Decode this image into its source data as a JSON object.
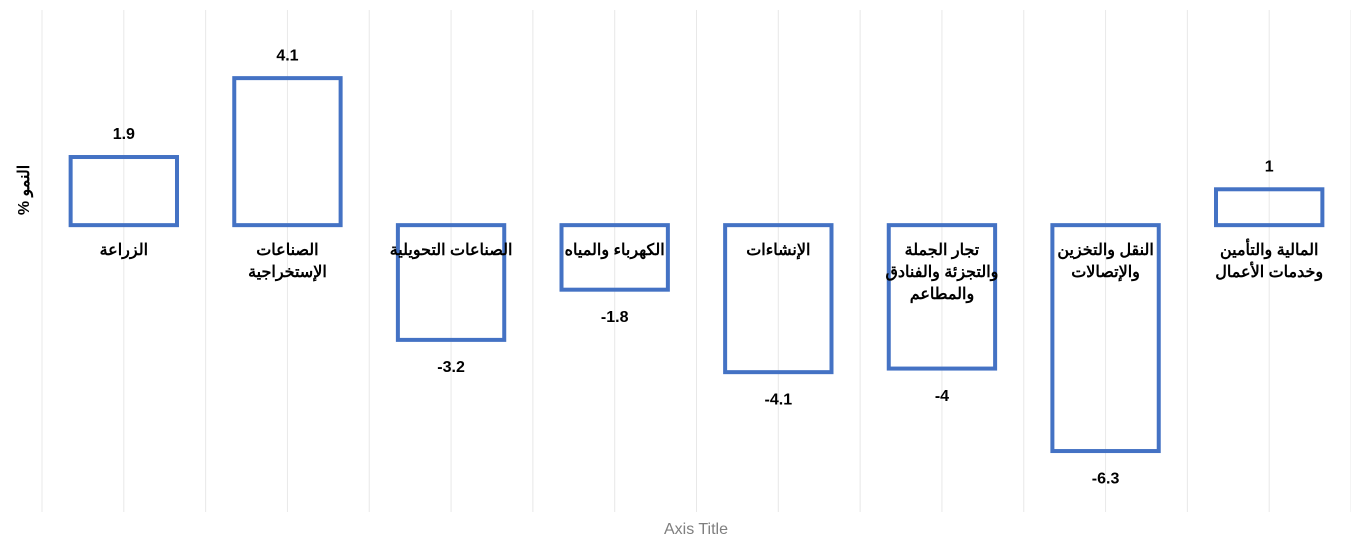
{
  "chart_data": {
    "type": "bar",
    "y_axis_title": "% النمو",
    "x_axis_title": "Axis Title",
    "categories": [
      "الزراعة",
      "الصناعات\nالإستخراجية",
      "الصناعات التحويلية",
      "الكهرباء والمياه",
      "الإنشاءات",
      "تجار الجملة\nوالتجزئة والفنادق\nوالمطاعم",
      "النقل والتخزين\nوالإتصالات",
      "المالية والتأمين\nوخدمات الأعمال"
    ],
    "values": [
      1.9,
      4.1,
      -3.2,
      -1.8,
      -4.1,
      -4,
      -6.3,
      1
    ],
    "color": "#4472c4",
    "ylim": [
      -8,
      6
    ],
    "grid": true
  }
}
